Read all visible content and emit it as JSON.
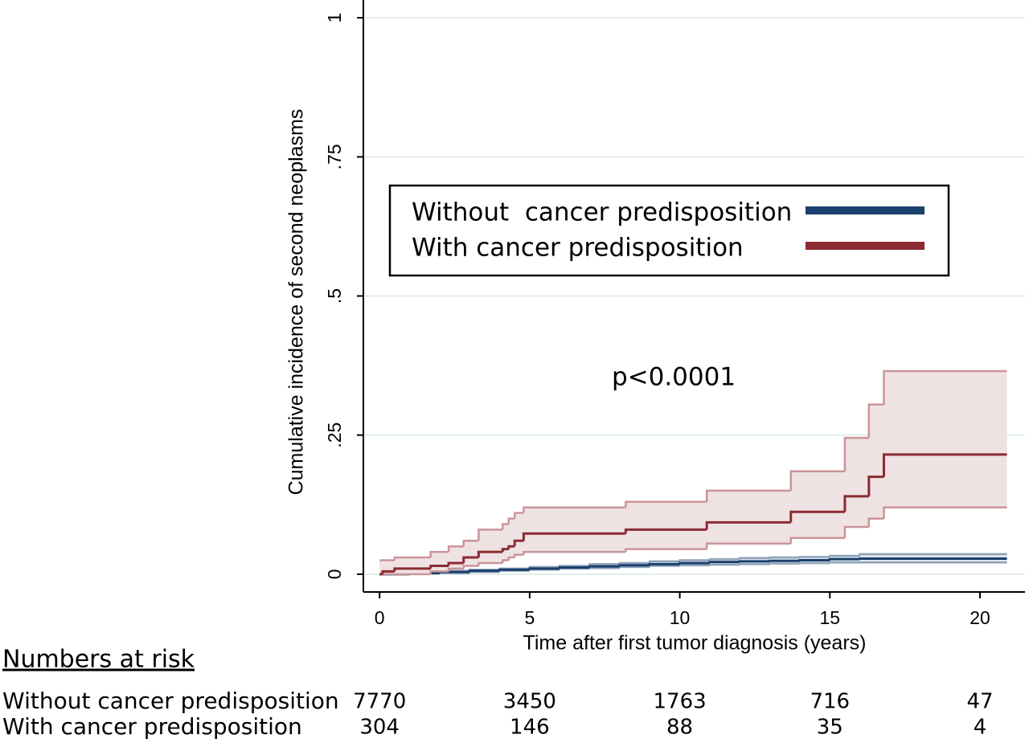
{
  "chart_data": {
    "type": "step",
    "y_label": "Cumulative incidence of second neoplasms",
    "x_label": "Time after first tumor diagnosis (years)",
    "annotations": [
      "p<0.0001"
    ],
    "xlim": [
      -0.54,
      21.5
    ],
    "xticks": [
      0,
      5,
      10,
      15,
      20
    ],
    "ylim": [
      -0.032,
      1.032
    ],
    "yticks": [
      0,
      {
        "value": 0.25,
        "label": ".25"
      },
      {
        "value": 0.5,
        "label": ".5"
      },
      {
        "value": 0.75,
        "label": ".75"
      },
      1
    ],
    "grid": true,
    "series": [
      {
        "name": "Without  cancer predisposition",
        "color": "#1b3f6c",
        "band_color": "#8ea2b8",
        "x": [
          0,
          1,
          2,
          3,
          4,
          5,
          6,
          7,
          8,
          9,
          10,
          11,
          12,
          13,
          14,
          15,
          16,
          20.9
        ],
        "values": [
          0,
          0.002,
          0.004,
          0.006,
          0.008,
          0.01,
          0.012,
          0.014,
          0.016,
          0.018,
          0.02,
          0.022,
          0.023,
          0.024,
          0.025,
          0.027,
          0.028,
          0.028
        ],
        "upper": [
          0.001,
          0.004,
          0.006,
          0.008,
          0.01,
          0.013,
          0.015,
          0.018,
          0.02,
          0.023,
          0.025,
          0.027,
          0.029,
          0.03,
          0.031,
          0.033,
          0.036,
          0.036
        ],
        "lower": [
          0,
          0.001,
          0.002,
          0.004,
          0.006,
          0.008,
          0.01,
          0.011,
          0.013,
          0.015,
          0.016,
          0.017,
          0.018,
          0.019,
          0.02,
          0.021,
          0.021,
          0.021
        ]
      },
      {
        "name": "With cancer predisposition",
        "color": "#8c2b31",
        "band_color": "#c99599",
        "x": [
          0,
          0.1,
          0.5,
          1.7,
          2.3,
          2.8,
          3.3,
          4.1,
          4.3,
          4.5,
          4.8,
          8.2,
          10.9,
          13.7,
          15.5,
          16.3,
          16.8,
          20.9
        ],
        "values": [
          0,
          0.005,
          0.01,
          0.015,
          0.02,
          0.03,
          0.04,
          0.045,
          0.05,
          0.06,
          0.073,
          0.08,
          0.093,
          0.112,
          0.14,
          0.175,
          0.215,
          0.215
        ],
        "upper": [
          0.025,
          0.025,
          0.03,
          0.04,
          0.05,
          0.06,
          0.08,
          0.09,
          0.1,
          0.11,
          0.12,
          0.13,
          0.15,
          0.185,
          0.245,
          0.305,
          0.365,
          0.365
        ],
        "lower": [
          0,
          0,
          0,
          0.005,
          0.01,
          0.015,
          0.02,
          0.025,
          0.03,
          0.035,
          0.04,
          0.045,
          0.055,
          0.065,
          0.085,
          0.1,
          0.12,
          0.12
        ]
      }
    ],
    "risk_table": {
      "title": "Numbers at risk",
      "rows": [
        {
          "label": "Without cancer predisposition",
          "values": [
            "7770",
            "3450",
            "1763",
            "716",
            "47"
          ]
        },
        {
          "label": "With cancer predisposition",
          "values": [
            "304",
            "146",
            "88",
            "35",
            "4"
          ]
        }
      ]
    }
  }
}
